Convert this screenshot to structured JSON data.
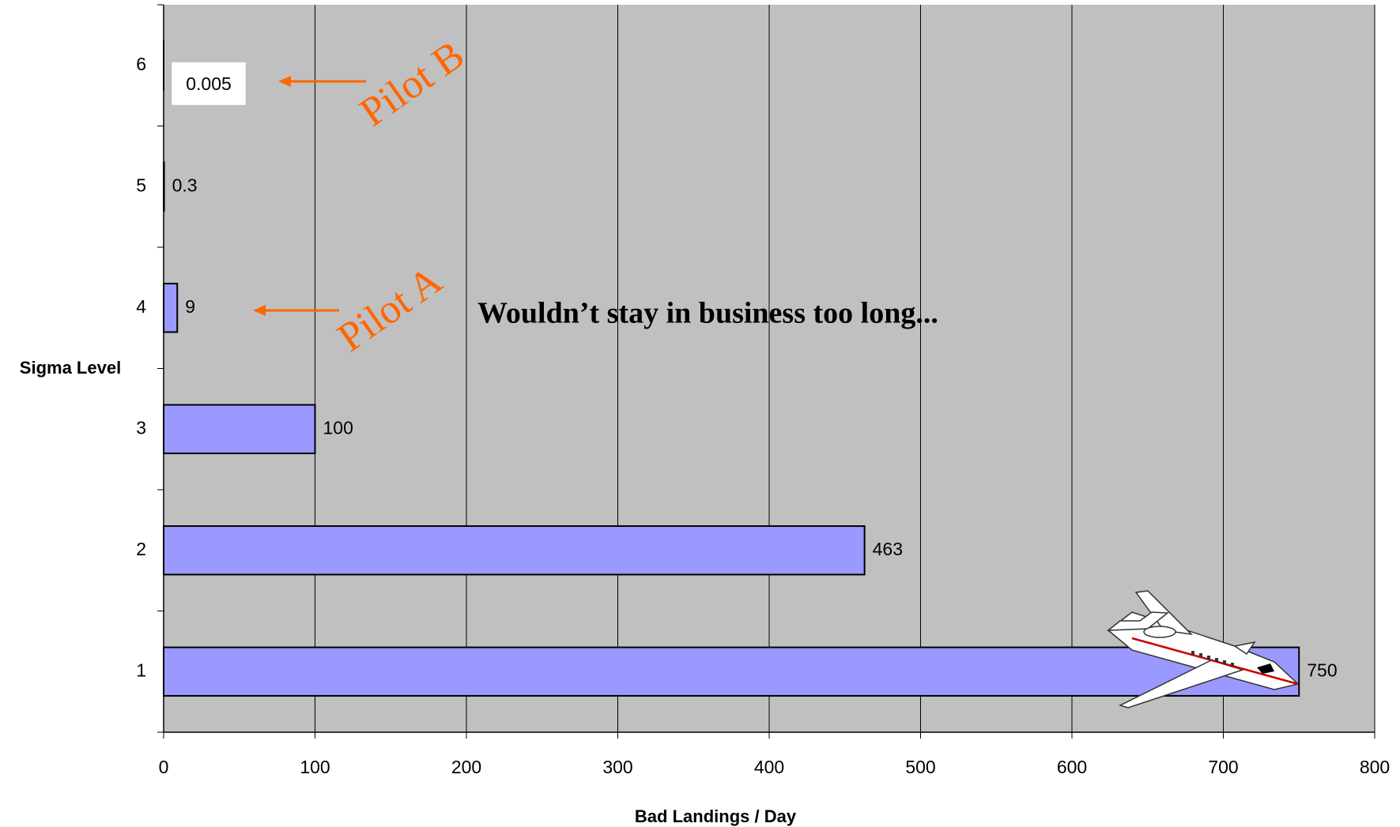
{
  "chart_data": {
    "type": "bar",
    "categories": [
      "1",
      "2",
      "3",
      "4",
      "5",
      "6"
    ],
    "values": [
      750,
      463,
      100,
      9,
      0.3,
      0.005
    ],
    "color": "#9999ff",
    "xlim": [
      0,
      800
    ],
    "xticks": [
      0,
      100,
      200,
      300,
      400,
      500,
      600,
      700,
      800
    ],
    "grid": true,
    "x_label": "Bad Landings / Day",
    "y_label": "Sigma Level",
    "annotations": [
      "Pilot B",
      "Pilot A",
      "Wouldn’t stay in business too long..."
    ]
  }
}
